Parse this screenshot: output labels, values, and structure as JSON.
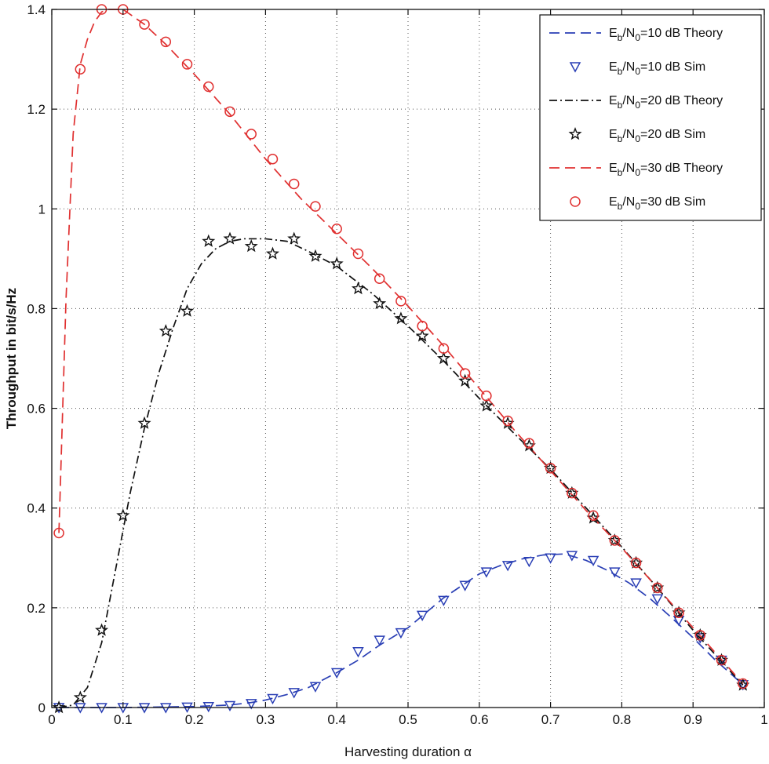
{
  "chart_data": {
    "type": "line",
    "title": "",
    "xlabel": "Harvesting duration α",
    "ylabel": "Throughput in bit/s/Hz",
    "xlim": [
      0,
      1
    ],
    "ylim": [
      0,
      1.4
    ],
    "xticks": [
      0,
      0.1,
      0.2,
      0.3,
      0.4,
      0.5,
      0.6,
      0.7,
      0.8,
      0.9,
      1
    ],
    "xtick_labels": [
      "0",
      "0.1",
      "0.2",
      "0.3",
      "0.4",
      "0.5",
      "0.6",
      "0.7",
      "0.8",
      "0.9",
      "1"
    ],
    "yticks": [
      0,
      0.2,
      0.4,
      0.6,
      0.8,
      1,
      1.2,
      1.4
    ],
    "ytick_labels": [
      "0",
      "0.2",
      "0.4",
      "0.6",
      "0.8",
      "1",
      "1.2",
      "1.4"
    ],
    "grid": true,
    "legend_position": "top-right",
    "series": [
      {
        "name": "10 dB Theory",
        "kind": "theory",
        "label_main": "E",
        "label_sub1": "b",
        "label_mid": "/N",
        "label_sub2": "0",
        "label_rest": "=10 dB Theory",
        "color": "#2a3fb5",
        "dash": "13,7",
        "marker": "none",
        "x": [
          0.01,
          0.1,
          0.2,
          0.25,
          0.28,
          0.3,
          0.33,
          0.36,
          0.4,
          0.43,
          0.46,
          0.5,
          0.55,
          0.6,
          0.63,
          0.66,
          0.69,
          0.72,
          0.75,
          0.78,
          0.81,
          0.84,
          0.87,
          0.9,
          0.93,
          0.97
        ],
        "y": [
          0,
          0,
          0.002,
          0.005,
          0.01,
          0.015,
          0.026,
          0.04,
          0.07,
          0.095,
          0.125,
          0.16,
          0.22,
          0.268,
          0.285,
          0.298,
          0.306,
          0.308,
          0.295,
          0.275,
          0.25,
          0.218,
          0.18,
          0.14,
          0.097,
          0.046
        ]
      },
      {
        "name": "10 dB Sim",
        "kind": "sim",
        "label_main": "E",
        "label_sub1": "b",
        "label_mid": "/N",
        "label_sub2": "0",
        "label_rest": "=10 dB Sim",
        "color": "#2a3fb5",
        "dash": "none",
        "marker": "triangle-down",
        "x": [
          0.01,
          0.04,
          0.07,
          0.1,
          0.13,
          0.16,
          0.19,
          0.22,
          0.25,
          0.28,
          0.31,
          0.34,
          0.37,
          0.4,
          0.43,
          0.46,
          0.49,
          0.52,
          0.55,
          0.58,
          0.61,
          0.64,
          0.67,
          0.7,
          0.73,
          0.76,
          0.79,
          0.82,
          0.85,
          0.88,
          0.91,
          0.94,
          0.97
        ],
        "y": [
          0,
          0,
          0,
          0,
          0,
          0,
          0.001,
          0.002,
          0.004,
          0.008,
          0.018,
          0.03,
          0.042,
          0.07,
          0.112,
          0.135,
          0.15,
          0.185,
          0.215,
          0.245,
          0.272,
          0.285,
          0.293,
          0.3,
          0.305,
          0.295,
          0.272,
          0.25,
          0.218,
          0.175,
          0.14,
          0.095,
          0.046
        ]
      },
      {
        "name": "20 dB Theory",
        "kind": "theory",
        "label_main": "E",
        "label_sub1": "b",
        "label_mid": "/N",
        "label_sub2": "0",
        "label_rest": "=20 dB Theory",
        "color": "#111111",
        "dash": "10,4,2,4",
        "marker": "none",
        "x": [
          0.01,
          0.03,
          0.05,
          0.07,
          0.09,
          0.11,
          0.13,
          0.15,
          0.17,
          0.19,
          0.21,
          0.23,
          0.25,
          0.27,
          0.3,
          0.33,
          0.36,
          0.4,
          0.45,
          0.5,
          0.55,
          0.6,
          0.65,
          0.7,
          0.75,
          0.8,
          0.85,
          0.9,
          0.97
        ],
        "y": [
          0,
          0.005,
          0.04,
          0.13,
          0.28,
          0.43,
          0.56,
          0.67,
          0.76,
          0.84,
          0.89,
          0.92,
          0.935,
          0.94,
          0.94,
          0.935,
          0.915,
          0.885,
          0.83,
          0.765,
          0.695,
          0.62,
          0.548,
          0.478,
          0.4,
          0.322,
          0.24,
          0.155,
          0.045
        ]
      },
      {
        "name": "20 dB Sim",
        "kind": "sim",
        "label_main": "E",
        "label_sub1": "b",
        "label_mid": "/N",
        "label_sub2": "0",
        "label_rest": "=20 dB Sim",
        "color": "#111111",
        "dash": "none",
        "marker": "star",
        "x": [
          0.01,
          0.04,
          0.07,
          0.1,
          0.13,
          0.16,
          0.19,
          0.22,
          0.25,
          0.28,
          0.31,
          0.34,
          0.37,
          0.4,
          0.43,
          0.46,
          0.49,
          0.52,
          0.55,
          0.58,
          0.61,
          0.64,
          0.67,
          0.7,
          0.73,
          0.76,
          0.79,
          0.82,
          0.85,
          0.88,
          0.91,
          0.94,
          0.97
        ],
        "y": [
          0,
          0.02,
          0.155,
          0.385,
          0.57,
          0.755,
          0.795,
          0.935,
          0.94,
          0.925,
          0.91,
          0.94,
          0.905,
          0.89,
          0.84,
          0.81,
          0.78,
          0.745,
          0.7,
          0.655,
          0.605,
          0.57,
          0.525,
          0.48,
          0.43,
          0.38,
          0.335,
          0.29,
          0.24,
          0.19,
          0.145,
          0.095,
          0.045
        ]
      },
      {
        "name": "30 dB Theory",
        "kind": "theory",
        "label_main": "E",
        "label_sub1": "b",
        "label_mid": "/N",
        "label_sub2": "0",
        "label_rest": "=30 dB Theory",
        "color": "#e03030",
        "dash": "13,7",
        "marker": "none",
        "x": [
          0.01,
          0.02,
          0.03,
          0.04,
          0.05,
          0.06,
          0.07,
          0.08,
          0.1,
          0.13,
          0.16,
          0.2,
          0.25,
          0.3,
          0.35,
          0.4,
          0.45,
          0.5,
          0.55,
          0.6,
          0.65,
          0.7,
          0.75,
          0.8,
          0.85,
          0.9,
          0.97
        ],
        "y": [
          0.35,
          0.82,
          1.15,
          1.29,
          1.34,
          1.375,
          1.395,
          1.4,
          1.4,
          1.37,
          1.33,
          1.27,
          1.19,
          1.1,
          1.02,
          0.95,
          0.88,
          0.805,
          0.725,
          0.64,
          0.555,
          0.475,
          0.395,
          0.32,
          0.24,
          0.16,
          0.048
        ]
      },
      {
        "name": "30 dB Sim",
        "kind": "sim",
        "label_main": "E",
        "label_sub1": "b",
        "label_mid": "/N",
        "label_sub2": "0",
        "label_rest": "=30 dB Sim",
        "color": "#e03030",
        "dash": "none",
        "marker": "circle",
        "x": [
          0.01,
          0.04,
          0.07,
          0.1,
          0.13,
          0.16,
          0.19,
          0.22,
          0.25,
          0.28,
          0.31,
          0.34,
          0.37,
          0.4,
          0.43,
          0.46,
          0.49,
          0.52,
          0.55,
          0.58,
          0.61,
          0.64,
          0.67,
          0.7,
          0.73,
          0.76,
          0.79,
          0.82,
          0.85,
          0.88,
          0.91,
          0.94,
          0.97
        ],
        "y": [
          0.35,
          1.28,
          1.4,
          1.4,
          1.37,
          1.335,
          1.29,
          1.245,
          1.195,
          1.15,
          1.1,
          1.05,
          1.005,
          0.96,
          0.91,
          0.86,
          0.815,
          0.765,
          0.72,
          0.67,
          0.625,
          0.575,
          0.53,
          0.48,
          0.43,
          0.385,
          0.335,
          0.29,
          0.24,
          0.19,
          0.145,
          0.095,
          0.048
        ]
      }
    ]
  }
}
